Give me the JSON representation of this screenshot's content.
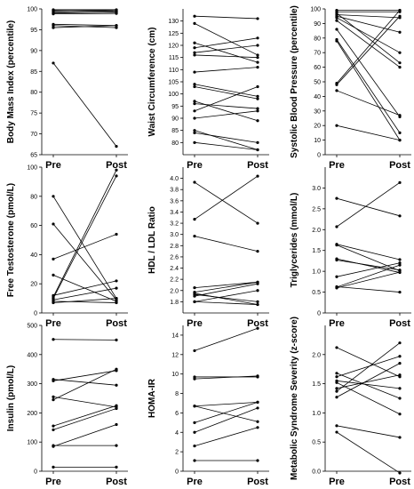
{
  "chart_data": [
    {
      "type": "line",
      "ylabel": "Body Mass Index (percentile)",
      "categories": [
        "Pre",
        "Post"
      ],
      "ylim": [
        65,
        100
      ],
      "yticks": [
        "65",
        "70",
        "75",
        "80",
        "85",
        "90",
        "95",
        "100"
      ],
      "series": [
        {
          "values": [
            99.8,
            99.8
          ]
        },
        {
          "values": [
            99.6,
            99.4
          ]
        },
        {
          "values": [
            99.5,
            99.7
          ]
        },
        {
          "values": [
            99.2,
            99.2
          ]
        },
        {
          "values": [
            99.0,
            99.3
          ]
        },
        {
          "values": [
            98.8,
            98.9
          ]
        },
        {
          "values": [
            96.3,
            96.0
          ]
        },
        {
          "values": [
            96.0,
            95.5
          ]
        },
        {
          "values": [
            95.5,
            96.0
          ]
        },
        {
          "values": [
            87.0,
            67.0
          ]
        }
      ]
    },
    {
      "type": "line",
      "ylabel": "Waist Circumference (cm)",
      "categories": [
        "Pre",
        "Post"
      ],
      "ylim": [
        75,
        135
      ],
      "yticks": [
        "80",
        "85",
        "90",
        "95",
        "100",
        "105",
        "110",
        "115",
        "120",
        "125",
        "130"
      ],
      "series": [
        {
          "values": [
            132,
            131
          ]
        },
        {
          "values": [
            129,
            116
          ]
        },
        {
          "values": [
            121,
            113
          ]
        },
        {
          "values": [
            119,
            123
          ]
        },
        {
          "values": [
            117,
            120
          ]
        },
        {
          "values": [
            116,
            115
          ]
        },
        {
          "values": [
            109,
            111
          ]
        },
        {
          "values": [
            104,
            99
          ]
        },
        {
          "values": [
            103,
            98
          ]
        },
        {
          "values": [
            97,
            89
          ]
        },
        {
          "values": [
            96,
            94
          ]
        },
        {
          "values": [
            93,
            103
          ]
        },
        {
          "values": [
            90,
            93
          ]
        },
        {
          "values": [
            85,
            77
          ]
        },
        {
          "values": [
            84,
            80
          ]
        },
        {
          "values": [
            80,
            77
          ]
        }
      ]
    },
    {
      "type": "line",
      "ylabel": "Systolic Blood Pressure (percentile)",
      "categories": [
        "Pre",
        "Post"
      ],
      "ylim": [
        0,
        100
      ],
      "yticks": [
        "0",
        "10",
        "20",
        "30",
        "40",
        "50",
        "60",
        "70",
        "80",
        "90",
        "100"
      ],
      "series": [
        {
          "values": [
            99,
            99
          ]
        },
        {
          "values": [
            98,
            98
          ]
        },
        {
          "values": [
            97,
            63
          ]
        },
        {
          "values": [
            96,
            94
          ]
        },
        {
          "values": [
            95,
            84
          ]
        },
        {
          "values": [
            94,
            70
          ]
        },
        {
          "values": [
            92,
            60
          ]
        },
        {
          "values": [
            86,
            26
          ]
        },
        {
          "values": [
            79,
            15
          ]
        },
        {
          "values": [
            78,
            10
          ]
        },
        {
          "values": [
            49,
            99
          ]
        },
        {
          "values": [
            48,
            95
          ]
        },
        {
          "values": [
            44,
            27
          ]
        },
        {
          "values": [
            20,
            10
          ]
        }
      ]
    },
    {
      "type": "line",
      "ylabel": "Free Testosterone (pmol/L)",
      "categories": [
        "Pre",
        "Post"
      ],
      "ylim": [
        0,
        100
      ],
      "yticks": [
        "0",
        "20",
        "40",
        "60",
        "80",
        "100"
      ],
      "series": [
        {
          "values": [
            80,
            10
          ]
        },
        {
          "values": [
            61,
            9
          ]
        },
        {
          "values": [
            37,
            54
          ]
        },
        {
          "values": [
            26,
            8
          ]
        },
        {
          "values": [
            12,
            22
          ]
        },
        {
          "values": [
            11,
            98
          ]
        },
        {
          "values": [
            10,
            94
          ]
        },
        {
          "values": [
            9,
            17
          ]
        },
        {
          "values": [
            8,
            7
          ]
        },
        {
          "values": [
            7,
            10
          ]
        }
      ]
    },
    {
      "type": "line",
      "ylabel": "HDL / LDL Ratio",
      "categories": [
        "Pre",
        "Post"
      ],
      "ylim": [
        1.6,
        4.2
      ],
      "yticks": [
        "1.8",
        "2.0",
        "2.2",
        "2.4",
        "2.6",
        "2.8",
        "3.0",
        "3.2",
        "3.4",
        "3.6",
        "3.8",
        "4.0"
      ],
      "series": [
        {
          "values": [
            3.93,
            3.2
          ]
        },
        {
          "values": [
            3.27,
            4.04
          ]
        },
        {
          "values": [
            2.97,
            2.7
          ]
        },
        {
          "values": [
            2.05,
            2.15
          ]
        },
        {
          "values": [
            1.97,
            2.15
          ]
        },
        {
          "values": [
            1.95,
            1.75
          ]
        },
        {
          "values": [
            1.93,
            1.8
          ]
        },
        {
          "values": [
            1.9,
            2.12
          ]
        },
        {
          "values": [
            1.8,
            1.75
          ]
        },
        {
          "values": [
            1.8,
            2.0
          ]
        }
      ]
    },
    {
      "type": "line",
      "ylabel": "Triglycerides (mmol/L)",
      "categories": [
        "Pre",
        "Post"
      ],
      "ylim": [
        0,
        3.5
      ],
      "yticks": [
        "0",
        "0.5",
        "1.0",
        "1.5",
        "2.0",
        "2.5",
        "3.0"
      ],
      "series": [
        {
          "values": [
            2.75,
            2.33
          ]
        },
        {
          "values": [
            2.07,
            3.13
          ]
        },
        {
          "values": [
            1.65,
            1.28
          ]
        },
        {
          "values": [
            1.63,
            1.01
          ]
        },
        {
          "values": [
            1.3,
            0.97
          ]
        },
        {
          "values": [
            1.27,
            1.03
          ]
        },
        {
          "values": [
            0.87,
            1.2
          ]
        },
        {
          "values": [
            0.63,
            0.5
          ]
        },
        {
          "values": [
            0.62,
            1.15
          ]
        },
        {
          "values": [
            0.6,
            0.98
          ]
        }
      ]
    },
    {
      "type": "line",
      "ylabel": "Insulin (pmol/L)",
      "categories": [
        "Pre",
        "Post"
      ],
      "ylim": [
        0,
        500
      ],
      "yticks": [
        "0",
        "100",
        "200",
        "300",
        "400",
        "500"
      ],
      "series": [
        {
          "values": [
            452,
            450
          ]
        },
        {
          "values": [
            315,
            295
          ]
        },
        {
          "values": [
            310,
            345
          ]
        },
        {
          "values": [
            255,
            220
          ]
        },
        {
          "values": [
            245,
            350
          ]
        },
        {
          "values": [
            155,
            225
          ]
        },
        {
          "values": [
            142,
            215
          ]
        },
        {
          "values": [
            88,
            88
          ]
        },
        {
          "values": [
            85,
            160
          ]
        },
        {
          "values": [
            14,
            14
          ]
        }
      ]
    },
    {
      "type": "line",
      "ylabel": "HOMA-IR",
      "categories": [
        "Pre",
        "Post"
      ],
      "ylim": [
        0,
        15
      ],
      "yticks": [
        "0",
        "2",
        "4",
        "6",
        "8",
        "10",
        "12",
        "14"
      ],
      "series": [
        {
          "values": [
            12.4,
            14.7
          ]
        },
        {
          "values": [
            9.7,
            9.7
          ]
        },
        {
          "values": [
            9.5,
            9.8
          ]
        },
        {
          "values": [
            6.7,
            7.1
          ]
        },
        {
          "values": [
            6.7,
            5.1
          ]
        },
        {
          "values": [
            5.0,
            7.1
          ]
        },
        {
          "values": [
            4.0,
            6.5
          ]
        },
        {
          "values": [
            2.6,
            4.5
          ]
        },
        {
          "values": [
            1.1,
            1.1
          ]
        }
      ]
    },
    {
      "type": "line",
      "ylabel": "Metabolic Syndrome Severity (z-score)",
      "categories": [
        "Pre",
        "Post"
      ],
      "ylim": [
        0,
        2.5
      ],
      "yticks": [
        "0.0",
        "0.5",
        "1.0",
        "1.5",
        "2.0"
      ],
      "series": [
        {
          "values": [
            2.12,
            1.62
          ]
        },
        {
          "values": [
            1.68,
            1.25
          ]
        },
        {
          "values": [
            1.62,
            1.97
          ]
        },
        {
          "values": [
            1.55,
            1.42
          ]
        },
        {
          "values": [
            1.52,
            0.98
          ]
        },
        {
          "values": [
            1.42,
            1.65
          ]
        },
        {
          "values": [
            1.37,
            2.2
          ]
        },
        {
          "values": [
            1.27,
            1.85
          ]
        },
        {
          "values": [
            0.78,
            0.58
          ]
        },
        {
          "values": [
            0.67,
            -0.03
          ]
        }
      ]
    }
  ]
}
